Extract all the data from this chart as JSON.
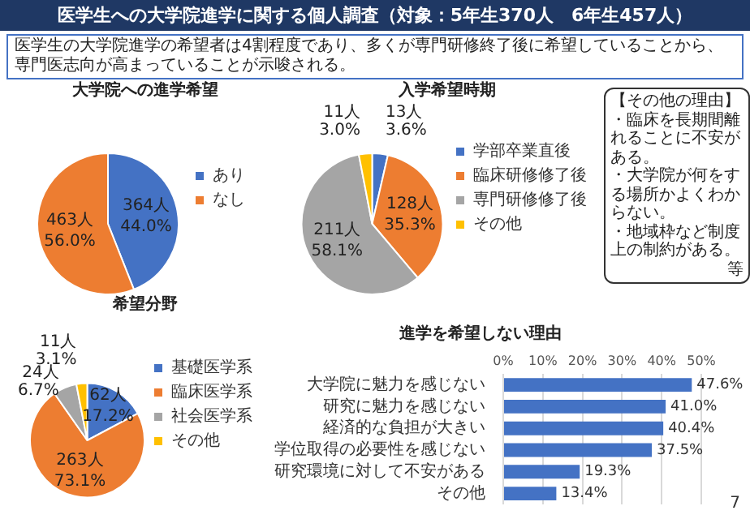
{
  "chart_data": [
    {
      "type": "other",
      "title": "医学生への大学院進学に関する個人調査（対象：5年生370人　6年生457人）",
      "subtitle": "医学生の大学院進学の希望者は4割程度であり、多くが専門研修終了後に希望していることから、専門医志向が高まっていることが示唆される。",
      "annotations": [
        "7"
      ]
    },
    {
      "type": "pie",
      "title": "大学院への進学希望",
      "categories": [
        "あり",
        "なし"
      ],
      "values": [
        364,
        463
      ],
      "colors": [
        "#4472c4",
        "#ed7d31"
      ],
      "value_labels": [
        "364人\n44.0%",
        "463人\n56.0%"
      ],
      "legend": "right"
    },
    {
      "type": "pie",
      "title": "入学希望時期",
      "categories": [
        "学部卒業直後",
        "臨床研修修了後",
        "専門研修修了後",
        "その他"
      ],
      "values": [
        13,
        128,
        211,
        11
      ],
      "colors": [
        "#4472c4",
        "#ed7d31",
        "#a5a5a5",
        "#ffc000"
      ],
      "value_labels": [
        "13人\n3.6%",
        "128人\n35.3%",
        "211人\n58.1%",
        "11人\n3.0%"
      ],
      "legend": "right"
    },
    {
      "type": "pie",
      "title": "希望分野",
      "categories": [
        "基礎医学系",
        "臨床医学系",
        "社会医学系",
        "その他"
      ],
      "values": [
        62,
        263,
        24,
        11
      ],
      "colors": [
        "#4472c4",
        "#ed7d31",
        "#a5a5a5",
        "#ffc000"
      ],
      "value_labels": [
        "62人\n17.2%",
        "263人\n73.1%",
        "24人\n6.7%",
        "11人\n3.1%"
      ],
      "legend": "right"
    },
    {
      "type": "bar",
      "orientation": "horizontal",
      "title": "進学を希望しない理由",
      "categories": [
        "大学院に魅力を感じない",
        "研究に魅力を感じない",
        "経済的な負担が大きい",
        "学位取得の必要性を感じない",
        "研究環境に対して不安がある",
        "その他"
      ],
      "values": [
        47.6,
        41.0,
        40.4,
        37.5,
        19.3,
        13.4
      ],
      "color": "#4472c4",
      "value_labels": [
        "47.6%",
        "41.0%",
        "40.4%",
        "37.5%",
        "19.3%",
        "13.4%"
      ],
      "xlim": [
        0,
        50
      ],
      "xticks": [
        {
          "value": 0,
          "label": "0%"
        },
        {
          "value": 10,
          "label": "10%"
        },
        {
          "value": 20,
          "label": "20%"
        },
        {
          "value": 30,
          "label": "30%"
        },
        {
          "value": 40,
          "label": "40%"
        },
        {
          "value": 50,
          "label": "50%"
        }
      ],
      "grid": "x",
      "legend": false,
      "annotations": [
        "【その他の理由】",
        "・臨床を長期間離れることに不安がある。",
        "・大学院が何をする場所かよくわからない。",
        "・地域枠など制度上の制約がある。",
        "等"
      ]
    }
  ]
}
